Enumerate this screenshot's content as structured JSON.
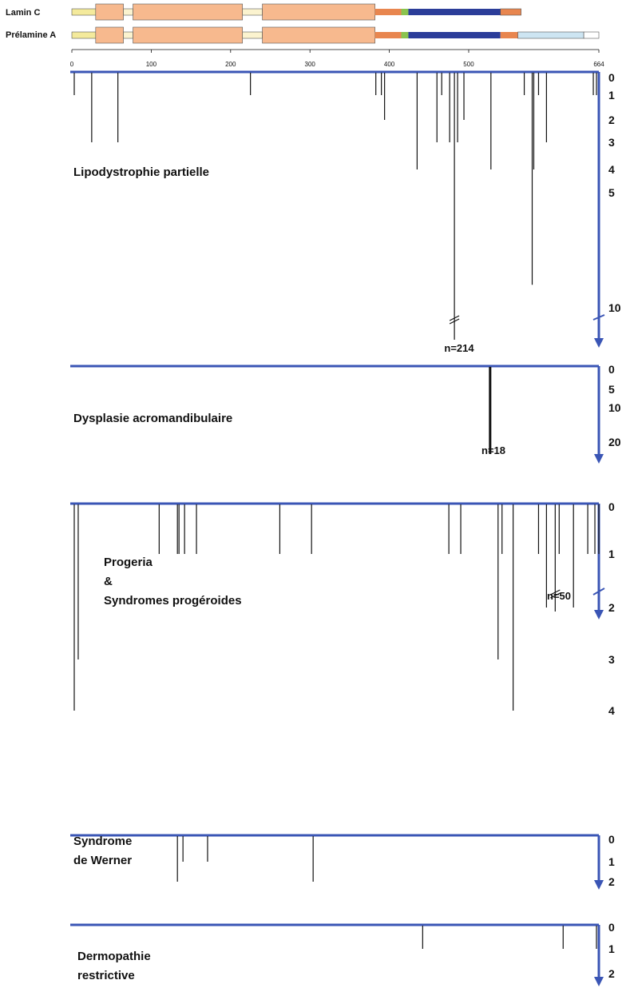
{
  "protein_map": {
    "rows": [
      "Lamin C",
      "Prélamine A"
    ],
    "scale_ticks": [
      "0",
      "100",
      "200",
      "300",
      "400",
      "500",
      "664"
    ],
    "colors": {
      "head": "#f4ea9c",
      "rod": "#f7b98e",
      "linker": "#fbf3cf",
      "nls": "#e8864f",
      "nls_mark": "#8ac44e",
      "tail": "#2b3d99",
      "prelamin_tail": "#cde5f2"
    }
  },
  "chart_data": [
    {
      "type": "bar",
      "title": "Lipodystrophie partielle",
      "x": [
        3,
        25,
        58,
        225,
        383,
        390,
        394,
        435,
        460,
        466,
        476,
        482,
        486,
        494,
        528,
        570,
        580,
        582,
        588,
        598,
        657,
        661
      ],
      "values": [
        1,
        3,
        3,
        1,
        1,
        1,
        2,
        4,
        3,
        1,
        3,
        10,
        3,
        2,
        4,
        1,
        9,
        4,
        1,
        3,
        1,
        1
      ],
      "y_tick_labels": [
        "0",
        "1",
        "2",
        "3",
        "4",
        "5",
        "10"
      ],
      "ylim": [
        0,
        10
      ],
      "annotation": "n=214"
    },
    {
      "type": "bar",
      "title": "Dysplasie acromandibulaire",
      "x": [
        527
      ],
      "values": [
        18
      ],
      "y_tick_labels": [
        "0",
        "5",
        "10",
        "20"
      ],
      "ylim": [
        0,
        20
      ],
      "annotation": "n=18"
    },
    {
      "type": "bar",
      "title_lines": [
        "Progeria",
        "&",
        "Syndromes progéroides"
      ],
      "x": [
        3,
        8,
        110,
        133,
        135,
        142,
        157,
        262,
        302,
        475,
        490,
        537,
        542,
        556,
        588,
        598,
        609,
        614,
        632,
        650,
        659,
        664
      ],
      "values": [
        4,
        3,
        1,
        1,
        1,
        1,
        1,
        1,
        1,
        1,
        1,
        3,
        1,
        4,
        1,
        2,
        5,
        1,
        2,
        1,
        1,
        1
      ],
      "y_tick_labels": [
        "0",
        "1",
        "2",
        "3",
        "4"
      ],
      "ylim": [
        0,
        5
      ],
      "annotation": "n=50"
    },
    {
      "type": "bar",
      "title_lines": [
        "Syndrome",
        "de Werner"
      ],
      "x": [
        133,
        140,
        171,
        304
      ],
      "values": [
        2,
        1,
        1,
        2
      ],
      "y_tick_labels": [
        "0",
        "1",
        "2"
      ],
      "ylim": [
        0,
        2
      ]
    },
    {
      "type": "bar",
      "title_lines": [
        "Dermopathie",
        "restrictive"
      ],
      "x": [
        442,
        619,
        661
      ],
      "values": [
        1,
        1,
        1
      ],
      "y_tick_labels": [
        "0",
        "1",
        "2"
      ],
      "ylim": [
        0,
        2
      ]
    }
  ]
}
